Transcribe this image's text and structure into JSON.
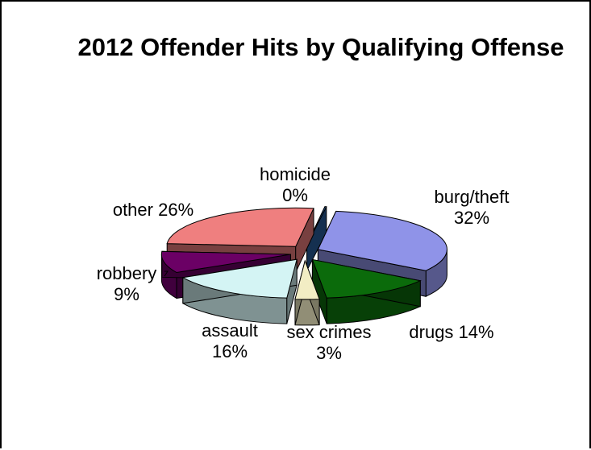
{
  "chart_data": {
    "type": "pie",
    "title": "2012 Offender Hits by Qualifying Offense",
    "exploded": true,
    "three_d": true,
    "slices": [
      {
        "label": "burg/theft",
        "pct_text": "32%",
        "value": 32,
        "color": "#8f93e8"
      },
      {
        "label": "drugs",
        "pct_text": "14%",
        "value": 14,
        "color": "#0b6b0b"
      },
      {
        "label": "sex crimes",
        "pct_text": "3%",
        "value": 3,
        "color": "#f2edc4"
      },
      {
        "label": "assault",
        "pct_text": "16%",
        "value": 16,
        "color": "#d4f4f4"
      },
      {
        "label": "robbery",
        "pct_text": "9%",
        "value": 9,
        "color": "#6b0065"
      },
      {
        "label": "other",
        "pct_text": "26%",
        "value": 26,
        "color": "#ef7f7f"
      },
      {
        "label": "homicide",
        "pct_text": "0%",
        "value": 0,
        "color": "#2a5fa0"
      }
    ]
  }
}
